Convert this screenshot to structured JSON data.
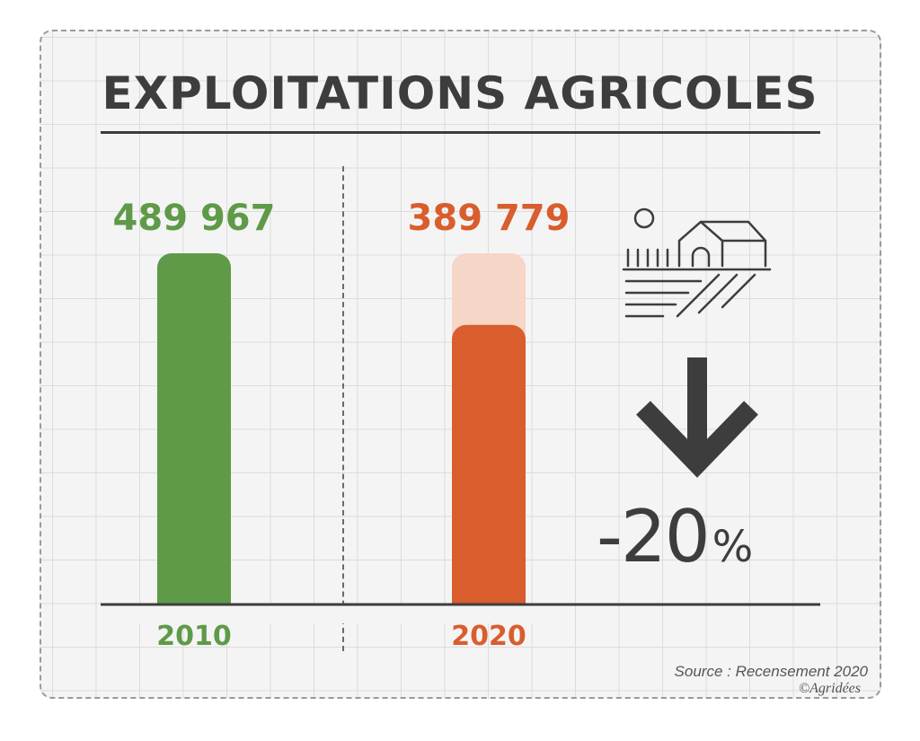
{
  "title": "EXPLOITATIONS AGRICOLES",
  "chart_data": {
    "type": "bar",
    "categories": [
      "2010",
      "2020"
    ],
    "values": [
      489967,
      389779
    ],
    "value_labels": [
      "489 967",
      "389 779"
    ],
    "colors": [
      "#5e9a48",
      "#d95d2d"
    ],
    "ghost_color": "#f6d6c6",
    "grid": true,
    "ylim": [
      0,
      489967
    ]
  },
  "change": {
    "value": "-20",
    "unit": "%"
  },
  "source": "Source : Recensement 2020",
  "copyright": "©Agridées"
}
